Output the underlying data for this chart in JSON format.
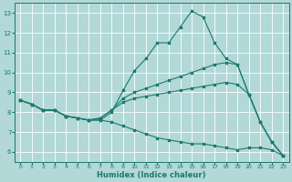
{
  "xlabel": "Humidex (Indice chaleur)",
  "background_color": "#b2d8d8",
  "grid_color": "#ffffff",
  "line_color": "#1a7a6e",
  "xlim": [
    -0.5,
    23.5
  ],
  "ylim": [
    5.5,
    13.5
  ],
  "xticks": [
    0,
    1,
    2,
    3,
    4,
    5,
    6,
    7,
    8,
    9,
    10,
    11,
    12,
    13,
    14,
    15,
    16,
    17,
    18,
    19,
    20,
    21,
    22,
    23
  ],
  "yticks": [
    6,
    7,
    8,
    9,
    10,
    11,
    12,
    13
  ],
  "line1_y": [
    8.6,
    8.4,
    8.1,
    8.1,
    7.8,
    7.7,
    7.6,
    7.6,
    8.0,
    9.1,
    10.1,
    10.7,
    11.5,
    11.5,
    12.3,
    13.1,
    12.8,
    11.5,
    10.7,
    10.4,
    8.9,
    7.5,
    6.5,
    5.8
  ],
  "line2_y": [
    8.6,
    8.4,
    8.1,
    8.1,
    7.8,
    7.7,
    7.6,
    7.7,
    8.1,
    8.7,
    9.0,
    9.2,
    9.4,
    9.6,
    9.8,
    10.0,
    10.2,
    10.4,
    10.5,
    10.4,
    8.9,
    7.5,
    6.5,
    5.8
  ],
  "line3_y": [
    8.6,
    8.4,
    8.1,
    8.1,
    7.8,
    7.7,
    7.6,
    7.7,
    8.1,
    8.5,
    8.7,
    8.8,
    8.9,
    9.0,
    9.1,
    9.2,
    9.3,
    9.4,
    9.5,
    9.4,
    8.9,
    7.5,
    6.5,
    5.8
  ],
  "line4_y": [
    8.6,
    8.4,
    8.1,
    8.1,
    7.8,
    7.7,
    7.6,
    7.6,
    7.5,
    7.3,
    7.1,
    6.9,
    6.7,
    6.6,
    6.5,
    6.4,
    6.4,
    6.3,
    6.2,
    6.1,
    6.2,
    6.2,
    6.1,
    5.8
  ]
}
